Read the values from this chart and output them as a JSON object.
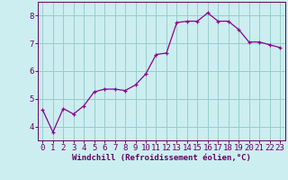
{
  "x": [
    0,
    1,
    2,
    3,
    4,
    5,
    6,
    7,
    8,
    9,
    10,
    11,
    12,
    13,
    14,
    15,
    16,
    17,
    18,
    19,
    20,
    21,
    22,
    23
  ],
  "y": [
    4.6,
    3.8,
    4.65,
    4.45,
    4.75,
    5.25,
    5.35,
    5.35,
    5.3,
    5.5,
    5.9,
    6.6,
    6.65,
    7.75,
    7.8,
    7.8,
    8.1,
    7.8,
    7.8,
    7.5,
    7.05,
    7.05,
    6.95,
    6.85
  ],
  "line_color": "#8B008B",
  "marker": "+",
  "bg_color": "#cceef0",
  "grid_color": "#99cccc",
  "xlabel": "Windchill (Refroidissement éolien,°C)",
  "xlabel_color": "#660066",
  "ylabel_ticks": [
    4,
    5,
    6,
    7,
    8
  ],
  "xlim": [
    -0.5,
    23.5
  ],
  "ylim": [
    3.5,
    8.5
  ],
  "xtick_labels": [
    "0",
    "1",
    "2",
    "3",
    "4",
    "5",
    "6",
    "7",
    "8",
    "9",
    "10",
    "11",
    "12",
    "13",
    "14",
    "15",
    "16",
    "17",
    "18",
    "19",
    "20",
    "21",
    "22",
    "23"
  ],
  "tick_color": "#660066",
  "spine_color": "#660066",
  "font_size_xlabel": 6.5,
  "font_size_ticks": 6.5
}
